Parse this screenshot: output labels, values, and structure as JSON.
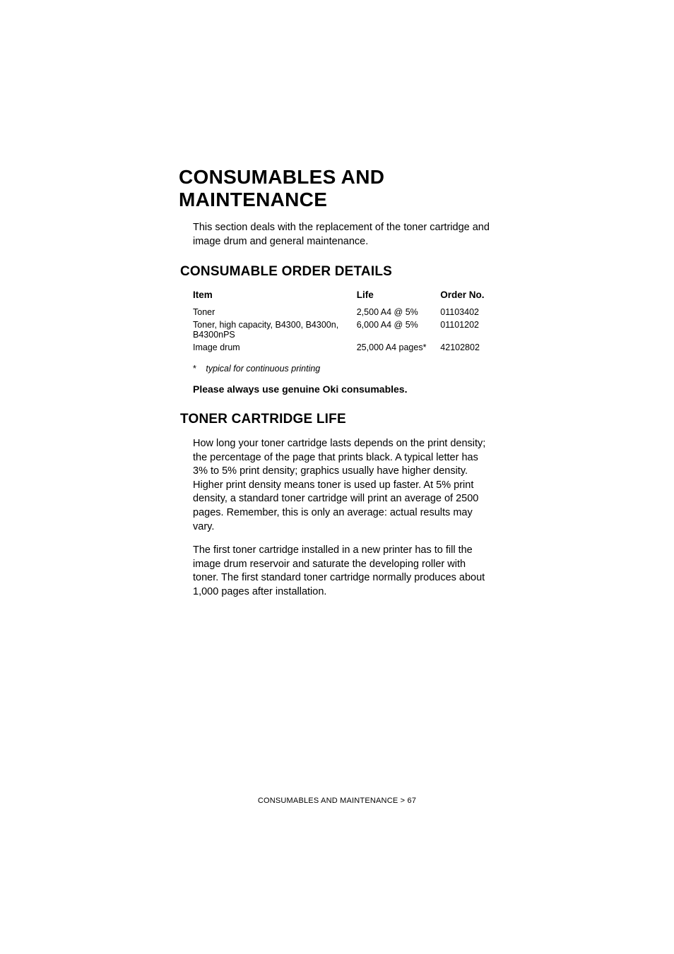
{
  "title": "CONSUMABLES AND MAINTENANCE",
  "intro": "This section deals with the replacement of the toner cartridge and image drum and general maintenance.",
  "section1": {
    "heading": "CONSUMABLE ORDER DETAILS",
    "table": {
      "columns": [
        "Item",
        "Life",
        "Order No."
      ],
      "rows": [
        [
          "Toner",
          "2,500 A4 @ 5%",
          "01103402"
        ],
        [
          "Toner, high capacity, B4300, B4300n, B4300nPS",
          "6,000 A4 @ 5%",
          "01101202"
        ],
        [
          "Image drum",
          "25,000 A4 pages*",
          "42102802"
        ]
      ]
    },
    "footnote_star": "*",
    "footnote_text": "typical for continuous printing",
    "bold_line": "Please always use genuine Oki consumables."
  },
  "section2": {
    "heading": "TONER CARTRIDGE LIFE",
    "p1": "How long your toner cartridge lasts depends on the print density; the percentage of the page that prints black. A typical letter has 3% to 5% print density; graphics usually have higher density. Higher print density means toner is used up faster. At 5% print density, a standard toner cartridge will print an average of 2500 pages. Remember, this is only an average: actual results may vary.",
    "p2": "The first toner cartridge installed in a new printer has to fill the image drum reservoir and saturate the developing roller with toner. The first standard toner cartridge normally produces about 1,000 pages after installation."
  },
  "footer": "CONSUMABLES AND MAINTENANCE > 67"
}
